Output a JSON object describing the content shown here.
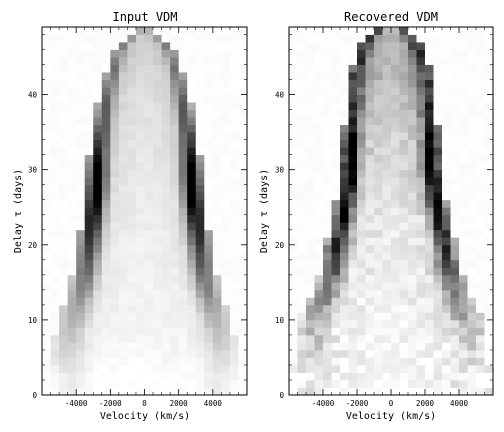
{
  "chart_data": [
    {
      "type": "heatmap",
      "title": "Input VDM",
      "xlabel": "Velocity (km/s)",
      "ylabel": "Delay τ (days)",
      "xlim": [
        -6000,
        6000
      ],
      "ylim": [
        0,
        49
      ],
      "x_ticks": [
        -4000,
        -2000,
        0,
        2000,
        4000
      ],
      "y_ticks": [
        0,
        10,
        20,
        30,
        40
      ],
      "colormap": "gray_r",
      "grid": false,
      "x_bins": 24,
      "y_bins": 49,
      "profile": {
        "delay": [
          0,
          2,
          5,
          8,
          11,
          15,
          20,
          23,
          26,
          28,
          30,
          32,
          35,
          37,
          40,
          42,
          44,
          46,
          47,
          48,
          49
        ],
        "half_width_kms": [
          5200,
          5300,
          5400,
          5300,
          4900,
          4300,
          3900,
          3700,
          3500,
          3400,
          3300,
          3250,
          3100,
          2900,
          2600,
          2400,
          2100,
          1700,
          1300,
          800,
          0
        ],
        "edge_darkness": [
          0.05,
          0.08,
          0.12,
          0.18,
          0.28,
          0.45,
          0.68,
          0.85,
          0.95,
          1.0,
          0.9,
          0.75,
          0.6,
          0.5,
          0.42,
          0.35,
          0.3,
          0.25,
          0.2,
          0.18,
          0.15
        ],
        "core_darkness": [
          0.0,
          0.0,
          0.03,
          0.05,
          0.06,
          0.07,
          0.08,
          0.09,
          0.1,
          0.11,
          0.12,
          0.13,
          0.14,
          0.15,
          0.16,
          0.18,
          0.2,
          0.22,
          0.24,
          0.25,
          0.25
        ]
      }
    },
    {
      "type": "heatmap",
      "title": "Recovered VDM",
      "xlabel": "Velocity (km/s)",
      "ylabel": "Delay τ (days)",
      "xlim": [
        -6000,
        6000
      ],
      "ylim": [
        0,
        49
      ],
      "x_ticks": [
        -4000,
        -2000,
        0,
        2000,
        4000
      ],
      "y_ticks": [
        0,
        10,
        20,
        30,
        40
      ],
      "colormap": "gray_r",
      "grid": false,
      "x_bins": 24,
      "y_bins": 49,
      "profile": {
        "delay": [
          0,
          2,
          5,
          8,
          11,
          14,
          17,
          20,
          23,
          26,
          28,
          30,
          32,
          35,
          37,
          40,
          42,
          44,
          46,
          47,
          48,
          49
        ],
        "half_width_kms": [
          5800,
          5800,
          5700,
          5600,
          5200,
          4600,
          4100,
          3800,
          3500,
          3200,
          3000,
          2900,
          2900,
          2800,
          2700,
          2600,
          2500,
          2300,
          1900,
          1600,
          1200,
          800
        ],
        "edge_darkness": [
          0.03,
          0.06,
          0.1,
          0.18,
          0.3,
          0.45,
          0.6,
          0.75,
          0.8,
          0.82,
          0.85,
          0.9,
          0.85,
          0.7,
          0.55,
          0.48,
          0.42,
          0.38,
          0.34,
          0.3,
          0.27,
          0.25
        ],
        "core_darkness": [
          0.02,
          0.04,
          0.05,
          0.06,
          0.07,
          0.08,
          0.09,
          0.1,
          0.12,
          0.14,
          0.16,
          0.18,
          0.2,
          0.22,
          0.25,
          0.3,
          0.33,
          0.36,
          0.38,
          0.38,
          0.37,
          0.35
        ]
      }
    }
  ]
}
